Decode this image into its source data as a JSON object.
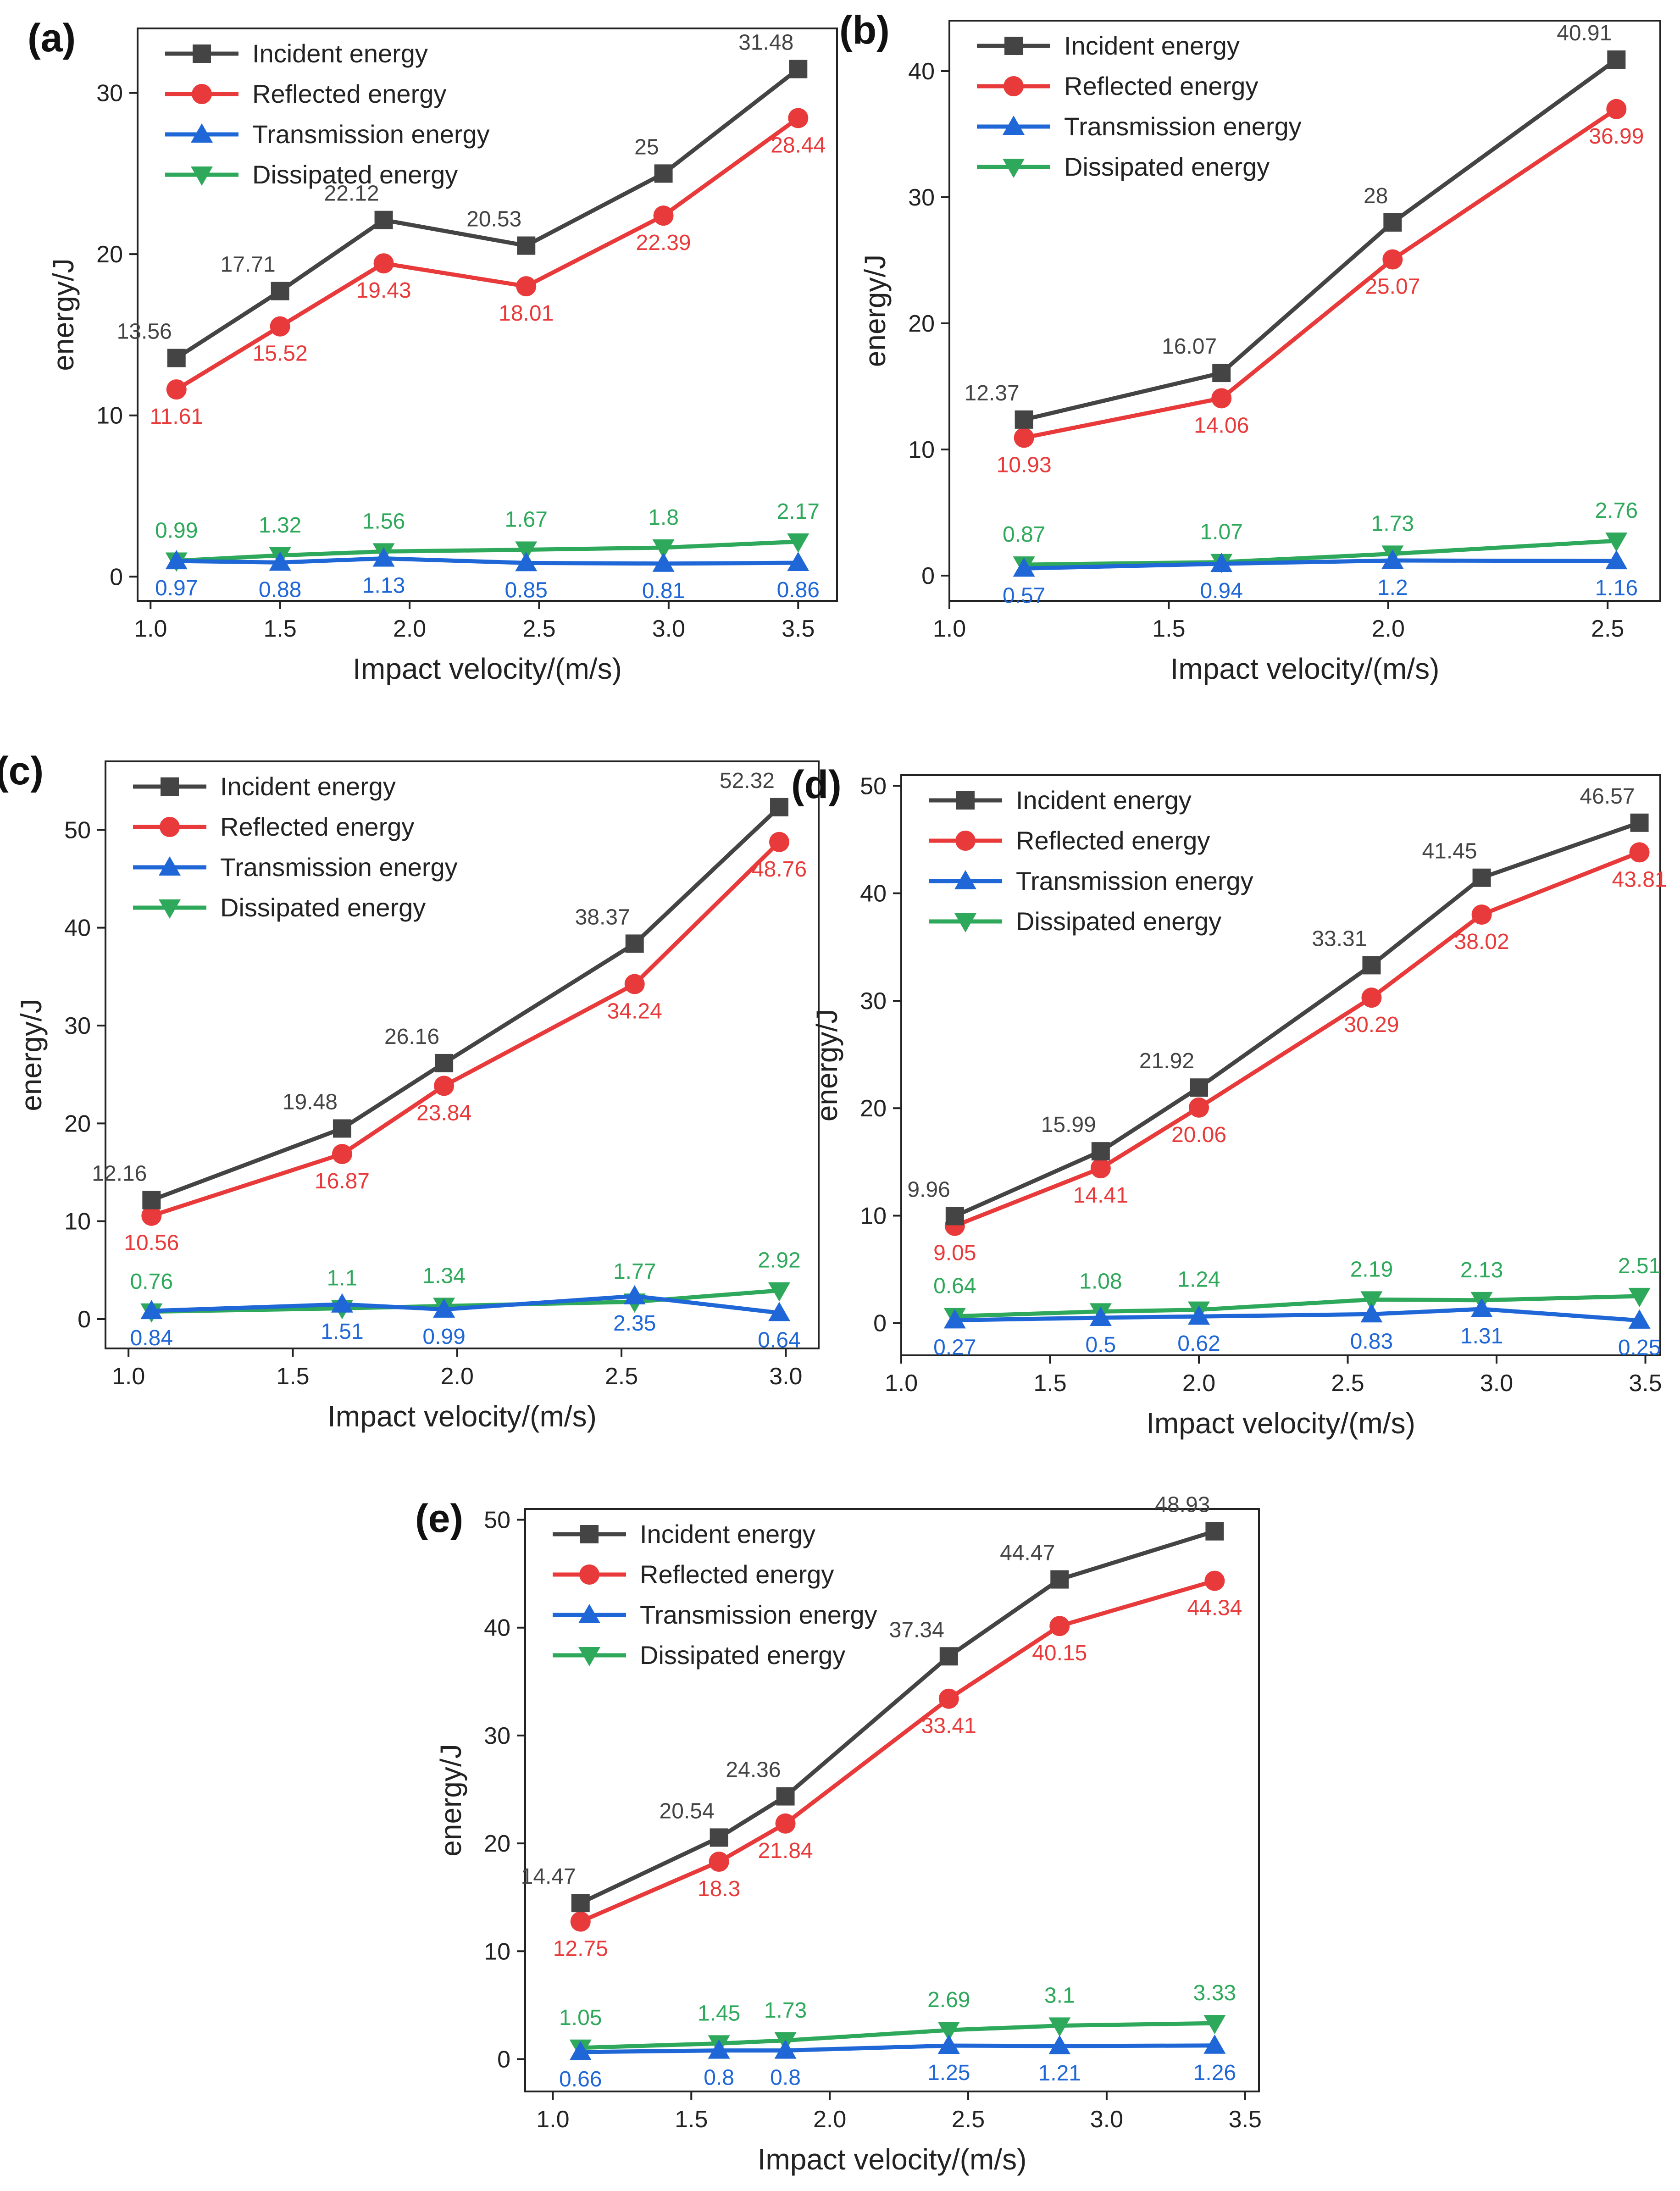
{
  "colors": {
    "incident": "#444444",
    "reflected": "#e83a3a",
    "transmission": "#1f67d6",
    "dissipated": "#2ea85a",
    "axis": "#222222"
  },
  "legend": [
    "Incident energy",
    "Reflected energy",
    "Transmission energy",
    "Dissipated energy"
  ],
  "chart_data": [
    {
      "type": "line",
      "panel": "(a)",
      "xlabel": "Impact velocity/(m/s)",
      "ylabel": "energy/J",
      "xlim": [
        0.95,
        3.65
      ],
      "ylim": [
        -1.5,
        34
      ],
      "xticks": [
        "1.0",
        "1.5",
        "2.0",
        "2.5",
        "3.0",
        "3.5"
      ],
      "xtick_values": [
        1.0,
        1.5,
        2.0,
        2.5,
        3.0,
        3.5
      ],
      "yticks": [
        "0",
        "10",
        "20",
        "30"
      ],
      "ytick_values": [
        0,
        10,
        20,
        30
      ],
      "x": [
        1.1,
        1.5,
        1.9,
        2.45,
        2.98,
        3.5
      ],
      "series": [
        {
          "name": "Incident energy",
          "key": "incident",
          "values": [
            13.56,
            17.71,
            22.12,
            20.53,
            25,
            31.48
          ],
          "labels": [
            "13.56",
            "17.71",
            "22.12",
            "20.53",
            "25",
            "31.48"
          ]
        },
        {
          "name": "Reflected energy",
          "key": "reflected",
          "values": [
            11.61,
            15.52,
            19.43,
            18.01,
            22.39,
            28.44
          ],
          "labels": [
            "11.61",
            "15.52",
            "19.43",
            "18.01",
            "22.39",
            "28.44"
          ]
        },
        {
          "name": "Transmission energy",
          "key": "transmission",
          "values": [
            0.97,
            0.88,
            1.13,
            0.85,
            0.81,
            0.86
          ],
          "labels": [
            "0.97",
            "0.88",
            "1.13",
            "0.85",
            "0.81",
            "0.86"
          ]
        },
        {
          "name": "Dissipated energy",
          "key": "dissipated",
          "values": [
            0.99,
            1.32,
            1.56,
            1.67,
            1.8,
            2.17
          ],
          "labels": [
            "0.99",
            "1.32",
            "1.56",
            "1.67",
            "1.8",
            "2.17"
          ]
        }
      ]
    },
    {
      "type": "line",
      "panel": "(b)",
      "xlabel": "Impact velocity/(m/s)",
      "ylabel": "energy/J",
      "xlim": [
        1.0,
        2.62
      ],
      "ylim": [
        -2,
        44
      ],
      "xticks": [
        "1.0",
        "1.5",
        "2.0",
        "2.5"
      ],
      "xtick_values": [
        1.0,
        1.5,
        2.0,
        2.5
      ],
      "yticks": [
        "0",
        "10",
        "20",
        "30",
        "40"
      ],
      "ytick_values": [
        0,
        10,
        20,
        30,
        40
      ],
      "x": [
        1.17,
        1.62,
        2.01,
        2.52
      ],
      "series": [
        {
          "name": "Incident energy",
          "key": "incident",
          "values": [
            12.37,
            16.07,
            28,
            40.91
          ],
          "labels": [
            "12.37",
            "16.07",
            "28",
            "40.91"
          ]
        },
        {
          "name": "Reflected energy",
          "key": "reflected",
          "values": [
            10.93,
            14.06,
            25.07,
            36.99
          ],
          "labels": [
            "10.93",
            "14.06",
            "25.07",
            "36.99"
          ]
        },
        {
          "name": "Transmission energy",
          "key": "transmission",
          "values": [
            0.57,
            0.94,
            1.2,
            1.16
          ],
          "labels": [
            "0.57",
            "0.94",
            "1.2",
            "1.16"
          ]
        },
        {
          "name": "Dissipated energy",
          "key": "dissipated",
          "values": [
            0.87,
            1.07,
            1.73,
            2.76
          ],
          "labels": [
            "0.87",
            "1.07",
            "1.73",
            "2.76"
          ]
        }
      ]
    },
    {
      "type": "line",
      "panel": "(c)",
      "xlabel": "Impact velocity/(m/s)",
      "ylabel": "energy/J",
      "xlim": [
        0.93,
        3.1
      ],
      "ylim": [
        -3,
        57
      ],
      "xticks": [
        "1.0",
        "1.5",
        "2.0",
        "2.5",
        "3.0"
      ],
      "xtick_values": [
        1.0,
        1.5,
        2.0,
        2.5,
        3.0
      ],
      "yticks": [
        "0",
        "10",
        "20",
        "30",
        "40",
        "50"
      ],
      "ytick_values": [
        0,
        10,
        20,
        30,
        40,
        50
      ],
      "x": [
        1.07,
        1.65,
        1.96,
        2.54,
        2.98
      ],
      "series": [
        {
          "name": "Incident energy",
          "key": "incident",
          "values": [
            12.16,
            19.48,
            26.16,
            38.37,
            52.32
          ],
          "labels": [
            "12.16",
            "19.48",
            "26.16",
            "38.37",
            "52.32"
          ]
        },
        {
          "name": "Reflected energy",
          "key": "reflected",
          "values": [
            10.56,
            16.87,
            23.84,
            34.24,
            48.76
          ],
          "labels": [
            "10.56",
            "16.87",
            "23.84",
            "34.24",
            "48.76"
          ]
        },
        {
          "name": "Transmission energy",
          "key": "transmission",
          "values": [
            0.84,
            1.51,
            0.99,
            2.35,
            0.64
          ],
          "labels": [
            "0.84",
            "1.51",
            "0.99",
            "2.35",
            "0.64"
          ]
        },
        {
          "name": "Dissipated energy",
          "key": "dissipated",
          "values": [
            0.76,
            1.1,
            1.34,
            1.77,
            2.92
          ],
          "labels": [
            "0.76",
            "1.1",
            "1.34",
            "1.77",
            "2.92"
          ]
        }
      ]
    },
    {
      "type": "line",
      "panel": "(d)",
      "xlabel": "Impact velocity/(m/s)",
      "ylabel": "energy/J",
      "xlim": [
        1.0,
        3.55
      ],
      "ylim": [
        -3,
        51
      ],
      "xticks": [
        "1.0",
        "1.5",
        "2.0",
        "2.5",
        "3.0",
        "3.5"
      ],
      "xtick_values": [
        1.0,
        1.5,
        2.0,
        2.5,
        3.0,
        3.5
      ],
      "yticks": [
        "0",
        "10",
        "20",
        "30",
        "40",
        "50"
      ],
      "ytick_values": [
        0,
        10,
        20,
        30,
        40,
        50
      ],
      "x": [
        1.18,
        1.67,
        2.0,
        2.58,
        2.95,
        3.48
      ],
      "series": [
        {
          "name": "Incident energy",
          "key": "incident",
          "values": [
            9.96,
            15.99,
            21.92,
            33.31,
            41.45,
            46.57
          ],
          "labels": [
            "9.96",
            "15.99",
            "21.92",
            "33.31",
            "41.45",
            "46.57"
          ]
        },
        {
          "name": "Reflected energy",
          "key": "reflected",
          "values": [
            9.05,
            14.41,
            20.06,
            30.29,
            38.02,
            43.81
          ],
          "labels": [
            "9.05",
            "14.41",
            "20.06",
            "30.29",
            "38.02",
            "43.81"
          ]
        },
        {
          "name": "Transmission energy",
          "key": "transmission",
          "values": [
            0.27,
            0.5,
            0.62,
            0.83,
            1.31,
            0.25
          ],
          "labels": [
            "0.27",
            "0.5",
            "0.62",
            "0.83",
            "1.31",
            "0.25"
          ]
        },
        {
          "name": "Dissipated energy",
          "key": "dissipated",
          "values": [
            0.64,
            1.08,
            1.24,
            2.19,
            2.13,
            2.51
          ],
          "labels": [
            "0.64",
            "1.08",
            "1.24",
            "2.19",
            "2.13",
            "2.51"
          ]
        }
      ]
    },
    {
      "type": "line",
      "panel": "(e)",
      "xlabel": "Impact velocity/(m/s)",
      "ylabel": "energy/J",
      "xlim": [
        0.9,
        3.55
      ],
      "ylim": [
        -3,
        51
      ],
      "xticks": [
        "1.0",
        "1.5",
        "2.0",
        "2.5",
        "3.0",
        "3.5"
      ],
      "xtick_values": [
        1.0,
        1.5,
        2.0,
        2.5,
        3.0,
        3.5
      ],
      "yticks": [
        "0",
        "10",
        "20",
        "30",
        "40",
        "50"
      ],
      "ytick_values": [
        0,
        10,
        20,
        30,
        40,
        50
      ],
      "x": [
        1.1,
        1.6,
        1.84,
        2.43,
        2.83,
        3.39
      ],
      "series": [
        {
          "name": "Incident energy",
          "key": "incident",
          "values": [
            14.47,
            20.54,
            24.36,
            37.34,
            44.47,
            48.93
          ],
          "labels": [
            "14.47",
            "20.54",
            "24.36",
            "37.34",
            "44.47",
            "48.93"
          ]
        },
        {
          "name": "Reflected energy",
          "key": "reflected",
          "values": [
            12.75,
            18.3,
            21.84,
            33.41,
            40.15,
            44.34
          ],
          "labels": [
            "12.75",
            "18.3",
            "21.84",
            "33.41",
            "40.15",
            "44.34"
          ]
        },
        {
          "name": "Transmission energy",
          "key": "transmission",
          "values": [
            0.66,
            0.8,
            0.8,
            1.25,
            1.21,
            1.26
          ],
          "labels": [
            "0.66",
            "0.8",
            "0.8",
            "1.25",
            "1.21",
            "1.26"
          ]
        },
        {
          "name": "Dissipated energy",
          "key": "dissipated",
          "values": [
            1.05,
            1.45,
            1.73,
            2.69,
            3.1,
            3.33
          ],
          "labels": [
            "1.05",
            "1.45",
            "1.73",
            "2.69",
            "3.1",
            "3.33"
          ]
        }
      ]
    }
  ]
}
